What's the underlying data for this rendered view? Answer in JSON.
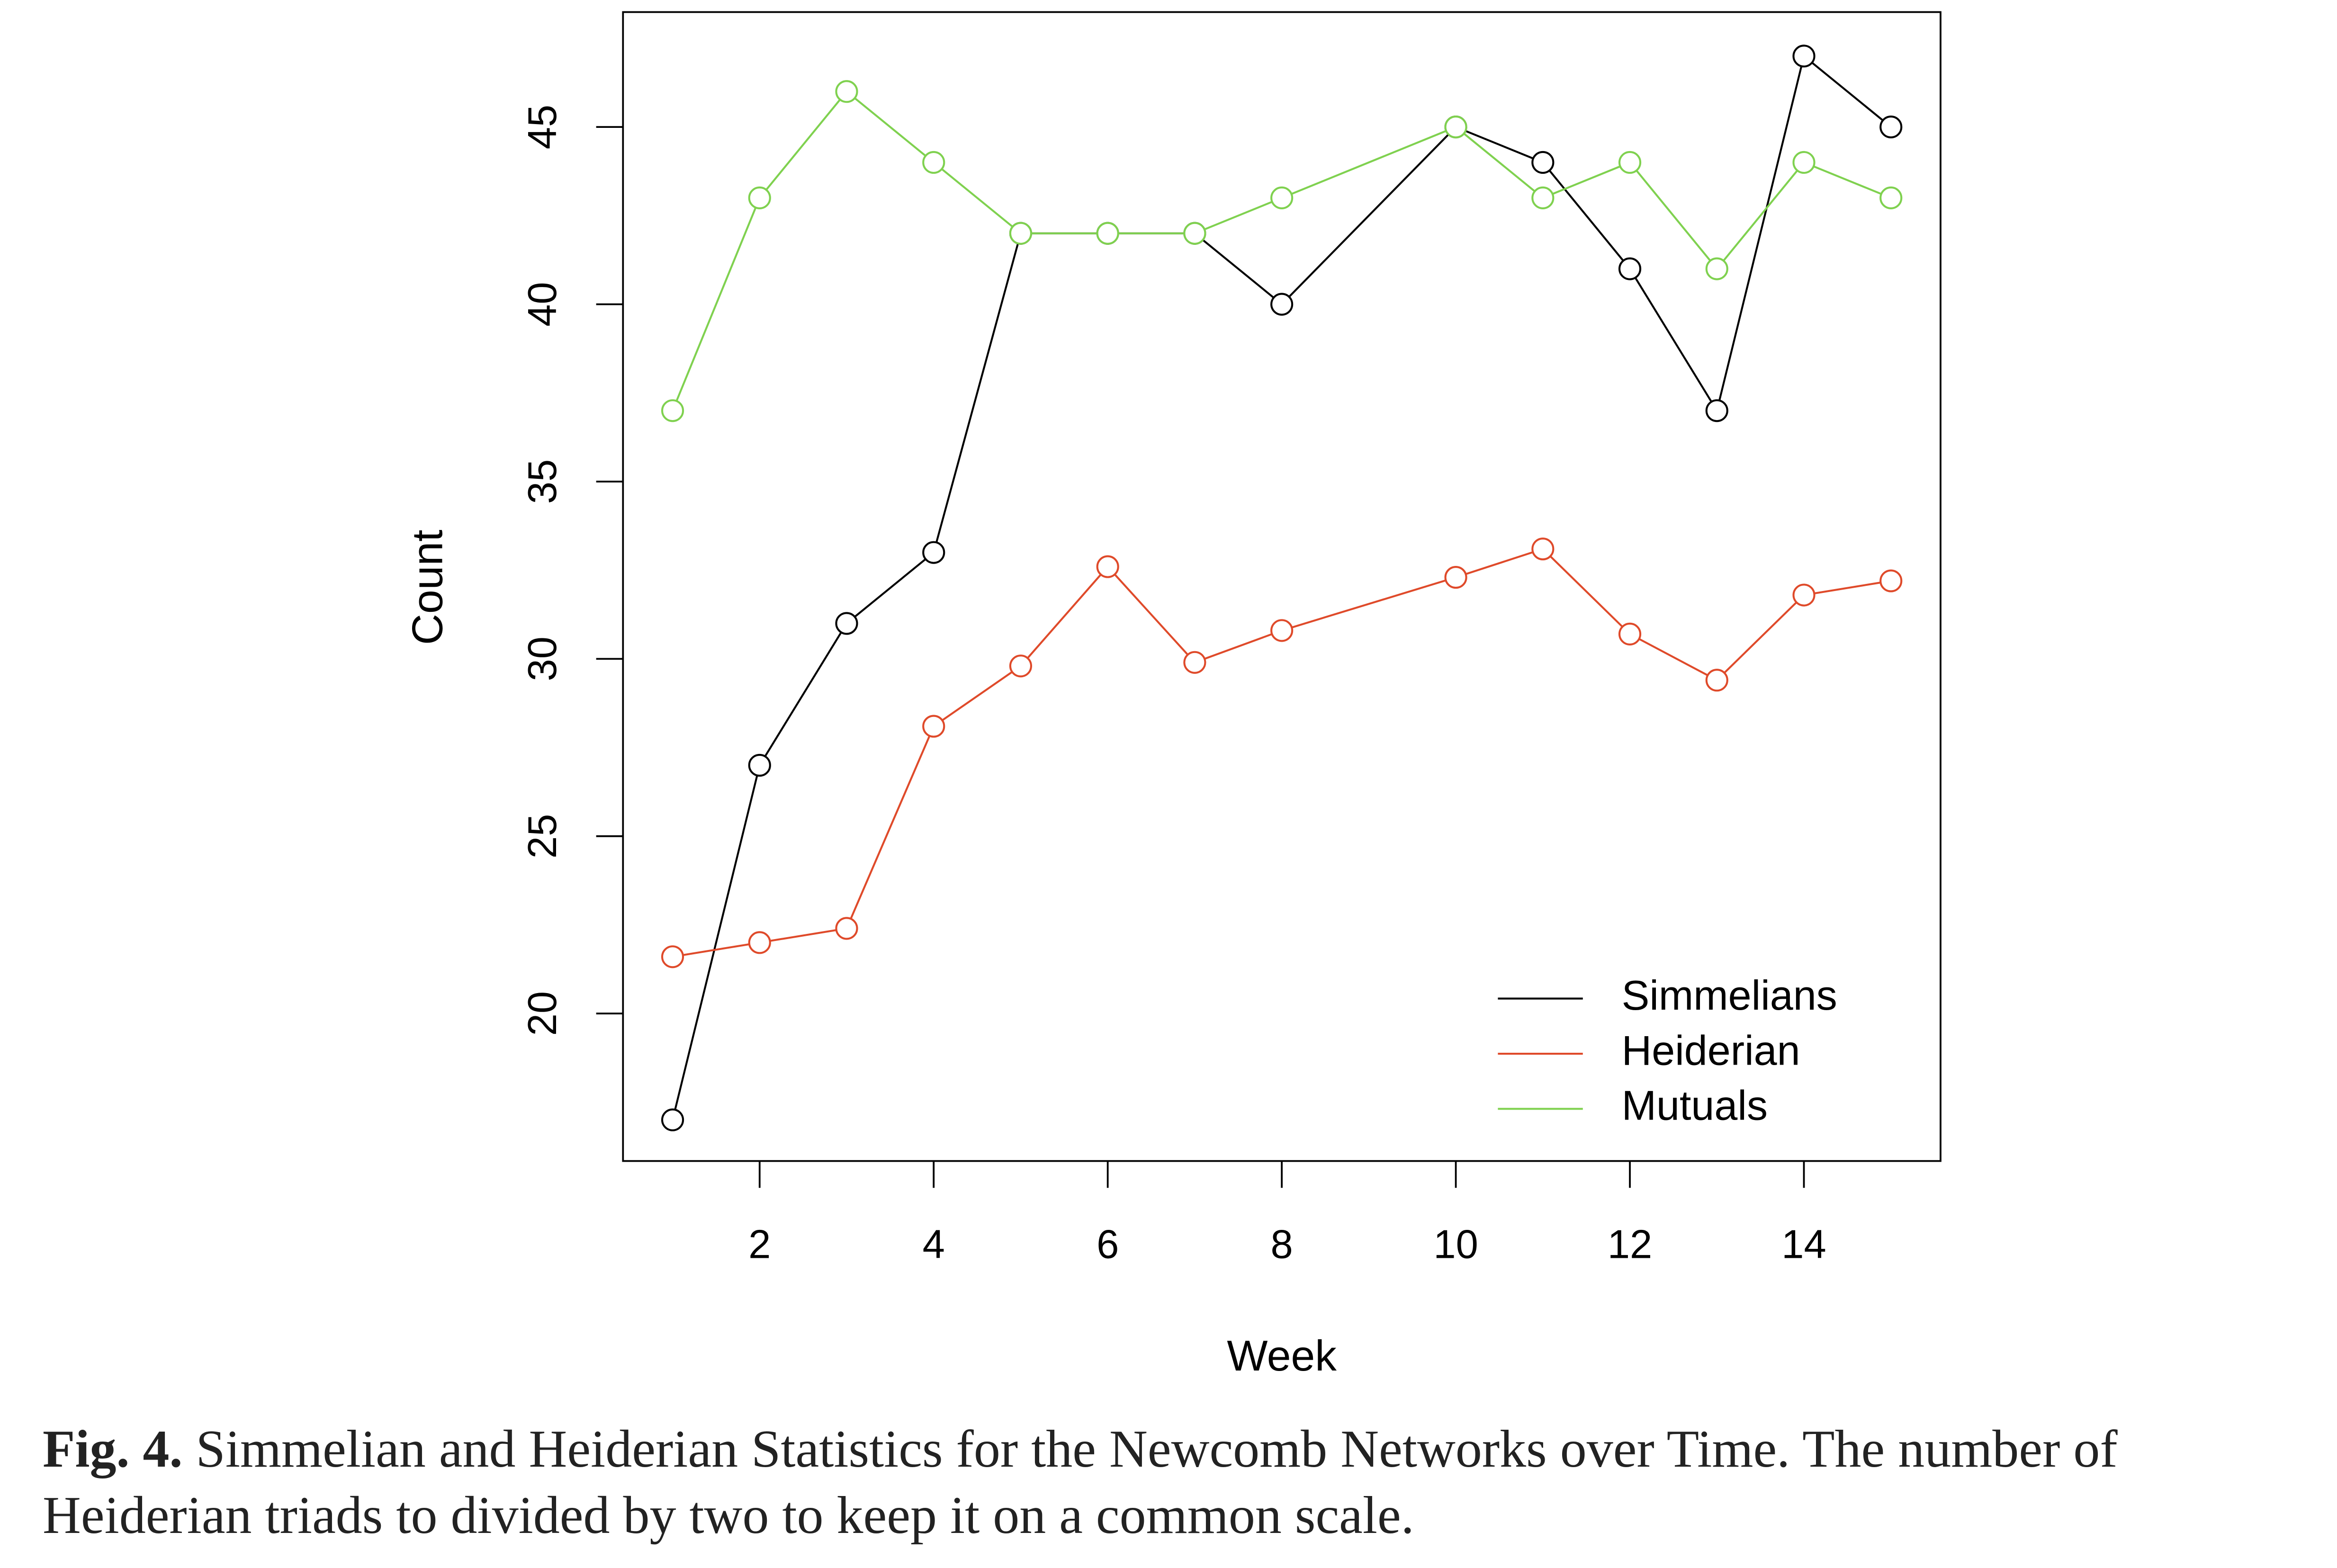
{
  "chart_data": {
    "type": "line",
    "x": [
      1,
      2,
      3,
      4,
      5,
      6,
      7,
      8,
      10,
      11,
      12,
      13,
      14,
      15
    ],
    "series": [
      {
        "name": "Simmelians",
        "color": "#000000",
        "values": [
          17,
          27,
          31,
          33,
          42,
          42,
          42,
          40,
          45,
          44,
          41,
          37,
          47,
          45
        ]
      },
      {
        "name": "Heiderian",
        "color": "#df4a2a",
        "values": [
          21.6,
          22.0,
          22.4,
          28.1,
          29.8,
          32.6,
          29.9,
          30.8,
          32.3,
          33.1,
          30.7,
          29.4,
          31.8,
          32.2
        ]
      },
      {
        "name": "Mutuals",
        "color": "#7fd14f",
        "values": [
          37,
          43,
          46,
          44,
          42,
          42,
          42,
          43,
          45,
          43,
          44,
          41,
          44,
          43
        ]
      }
    ],
    "xlabel": "Week",
    "ylabel": "Count",
    "xlim": [
      0.43,
      15.57
    ],
    "ylim": [
      15.84,
      48.24
    ],
    "xticks": [
      2,
      4,
      6,
      8,
      10,
      12,
      14
    ],
    "yticks": [
      20,
      25,
      30,
      35,
      40,
      45
    ],
    "legend": "bottom-right",
    "grid": false,
    "markers": "open-circle",
    "caption_label": "Fig. 4.",
    "caption": "Simmelian and Heiderian Statistics for the Newcomb Networks over Time. The number of Heiderian triads to divided by two to keep it on a common scale."
  }
}
